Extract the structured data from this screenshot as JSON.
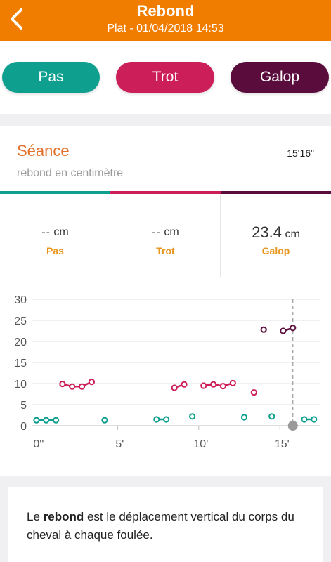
{
  "header": {
    "title": "Rebond",
    "subtitle": "Plat - 01/04/2018 14:53",
    "back_icon": "chevron-left-icon",
    "background": "#f07d00"
  },
  "gaits": [
    {
      "label": "Pas",
      "color": "#0f9f8f"
    },
    {
      "label": "Trot",
      "color": "#cc1f5a"
    },
    {
      "label": "Galop",
      "color": "#5a0d3c"
    }
  ],
  "session": {
    "title": "Séance",
    "duration": "15'16\"",
    "subtitle": "rebond en centimètre"
  },
  "metrics": [
    {
      "value": "--",
      "unit": "cm",
      "label": "Pas"
    },
    {
      "value": "--",
      "unit": "cm",
      "label": "Trot"
    },
    {
      "value": "23.4",
      "unit": "cm",
      "label": "Galop"
    }
  ],
  "chart_data": {
    "type": "scatter",
    "x_unit": "minutes",
    "xlim": [
      -0.3,
      17.5
    ],
    "ylim": [
      0,
      30
    ],
    "y_ticks": [
      0,
      5,
      10,
      15,
      20,
      25,
      30
    ],
    "x_ticks": [
      {
        "value": 0,
        "label": "0''"
      },
      {
        "value": 5,
        "label": "5'"
      },
      {
        "value": 10,
        "label": "10'"
      },
      {
        "value": 15,
        "label": "15'"
      }
    ],
    "grid": true,
    "marker_time": 15.8,
    "series": [
      {
        "gait": "Pas",
        "color": "#0f9f8f",
        "segments": [
          [
            [
              0,
              1.3
            ],
            [
              0.6,
              1.3
            ],
            [
              1.2,
              1.3
            ]
          ],
          [
            [
              4.2,
              1.3
            ]
          ],
          [
            [
              7.4,
              1.5
            ],
            [
              8.0,
              1.5
            ]
          ],
          [
            [
              9.6,
              2.2
            ]
          ],
          [
            [
              12.8,
              2.0
            ]
          ],
          [
            [
              14.5,
              2.2
            ]
          ],
          [
            [
              16.5,
              1.5
            ],
            [
              17.1,
              1.5
            ]
          ]
        ]
      },
      {
        "gait": "Trot",
        "color": "#cc1f5a",
        "segments": [
          [
            [
              1.6,
              9.9
            ],
            [
              2.2,
              9.3
            ],
            [
              2.8,
              9.3
            ],
            [
              3.4,
              10.4
            ]
          ],
          [
            [
              8.5,
              9.0
            ],
            [
              9.1,
              9.8
            ]
          ],
          [
            [
              10.3,
              9.5
            ],
            [
              10.9,
              9.8
            ],
            [
              11.5,
              9.4
            ],
            [
              12.1,
              10.1
            ]
          ],
          [
            [
              13.4,
              7.9
            ]
          ]
        ]
      },
      {
        "gait": "Galop",
        "color": "#5a0d3c",
        "segments": [
          [
            [
              14.0,
              22.8
            ]
          ],
          [
            [
              15.2,
              22.5
            ],
            [
              15.8,
              23.2
            ]
          ]
        ]
      }
    ]
  },
  "info": {
    "prefix": "Le ",
    "bold": "rebond",
    "suffix": " est le déplacement vertical du corps du cheval à chaque foulée."
  }
}
